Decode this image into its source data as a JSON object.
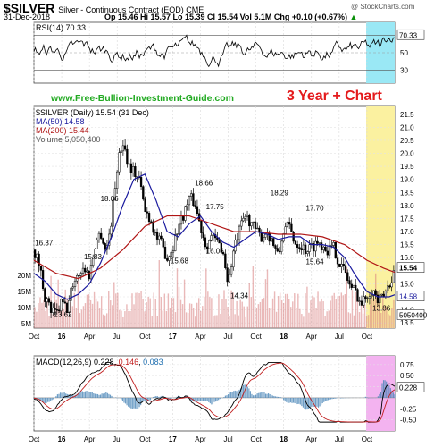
{
  "header": {
    "symbol": "$SILVER",
    "subtitle": "Silver - Continuous Contract (EOD)  CME",
    "date": "31-Dec-2018",
    "quote": "Op 15.46  Hi 15.57  Lo 15.39  Cl 15.54  Vol 5.1M  Chg +0.10 (+0.67%)",
    "quote_arrow": "▲",
    "brand": "@ StockCharts.com"
  },
  "overlay": {
    "site": "www.Free-Bullion-Investment-Guide.com",
    "range_label": "3 Year + Chart"
  },
  "colors": {
    "price": "#000000",
    "ma50": "#1a1a9e",
    "ma200": "#b01515",
    "volume": "#d98080",
    "rsi_highlight": "#9ae8f5",
    "price_highlight": "#fbf1a0",
    "macd_highlight": "#f3b3f0"
  },
  "chart_data": [
    {
      "type": "line",
      "name": "RSI",
      "title": "RSI(14) 70.33",
      "yticks": [
        30,
        50,
        70
      ],
      "ylim": [
        15,
        85
      ],
      "last_value_label": "70.33",
      "levels": [
        30,
        70
      ]
    },
    {
      "type": "candlestick",
      "name": "price",
      "title": "$SILVER (Daily) 15.54 (31 Dec)",
      "legend": [
        {
          "label": "MA(50) 14.58",
          "color": "#1a1a9e"
        },
        {
          "label": "MA(200) 15.44",
          "color": "#b01515"
        },
        {
          "label": "Volume 5,050,400",
          "color": "#999999"
        }
      ],
      "ylim": [
        13.3,
        21.8
      ],
      "yticks": [
        13.5,
        14.0,
        14.5,
        15.0,
        15.5,
        16.0,
        16.5,
        17.0,
        17.5,
        18.0,
        18.5,
        19.0,
        19.5,
        20.0,
        20.5,
        21.0,
        21.5
      ],
      "ytick_labels": [
        "13.5",
        "14.0",
        "14.5",
        "15.0",
        "",
        "16.0",
        "16.5",
        "17.0",
        "17.5",
        "18.0",
        "18.5",
        "19.0",
        "19.5",
        "20.0",
        "20.5",
        "21.0",
        "21.5"
      ],
      "xlim": [
        2015.75,
        2019.0
      ],
      "xticks": [
        2015.75,
        2016.0,
        2016.25,
        2016.5,
        2016.75,
        2017.0,
        2017.25,
        2017.5,
        2017.75,
        2018.0,
        2018.25,
        2018.5,
        2018.75
      ],
      "xtick_labels": [
        "Oct",
        "16",
        "Apr",
        "Jul",
        "Oct",
        "17",
        "Apr",
        "Jul",
        "Oct",
        "18",
        "Apr",
        "Jul",
        "Oct"
      ],
      "volume_ticks": [
        "5M",
        "10M",
        "15M",
        "20M"
      ],
      "volume_last_label": "5050400",
      "last_price_label": "15.54",
      "ma50_last_label": "14.58",
      "close_path": [
        [
          2015.75,
          16.3
        ],
        [
          2015.8,
          15.7
        ],
        [
          2015.85,
          14.5
        ],
        [
          2015.9,
          14.0
        ],
        [
          2015.95,
          13.8
        ],
        [
          2016.0,
          14.3
        ],
        [
          2016.05,
          14.0
        ],
        [
          2016.1,
          15.0
        ],
        [
          2016.15,
          15.4
        ],
        [
          2016.2,
          15.6
        ],
        [
          2016.25,
          15.3
        ],
        [
          2016.3,
          16.5
        ],
        [
          2016.35,
          17.0
        ],
        [
          2016.4,
          16.2
        ],
        [
          2016.45,
          17.5
        ],
        [
          2016.5,
          19.5
        ],
        [
          2016.55,
          20.5
        ],
        [
          2016.6,
          19.6
        ],
        [
          2016.65,
          19.3
        ],
        [
          2016.7,
          19.0
        ],
        [
          2016.75,
          17.8
        ],
        [
          2016.8,
          17.5
        ],
        [
          2016.85,
          16.8
        ],
        [
          2016.9,
          16.5
        ],
        [
          2016.95,
          16.0
        ],
        [
          2017.0,
          16.4
        ],
        [
          2017.05,
          17.2
        ],
        [
          2017.1,
          17.7
        ],
        [
          2017.15,
          18.3
        ],
        [
          2017.2,
          18.1
        ],
        [
          2017.25,
          17.2
        ],
        [
          2017.3,
          16.5
        ],
        [
          2017.35,
          16.8
        ],
        [
          2017.4,
          16.6
        ],
        [
          2017.45,
          16.3
        ],
        [
          2017.5,
          15.0
        ],
        [
          2017.55,
          16.3
        ],
        [
          2017.6,
          17.0
        ],
        [
          2017.65,
          17.6
        ],
        [
          2017.7,
          17.4
        ],
        [
          2017.75,
          17.0
        ],
        [
          2017.8,
          16.8
        ],
        [
          2017.85,
          17.0
        ],
        [
          2017.9,
          16.6
        ],
        [
          2017.95,
          16.0
        ],
        [
          2018.0,
          17.1
        ],
        [
          2018.05,
          17.2
        ],
        [
          2018.1,
          16.6
        ],
        [
          2018.15,
          16.5
        ],
        [
          2018.2,
          16.3
        ],
        [
          2018.25,
          16.4
        ],
        [
          2018.3,
          16.6
        ],
        [
          2018.35,
          16.5
        ],
        [
          2018.4,
          16.3
        ],
        [
          2018.45,
          16.4
        ],
        [
          2018.5,
          15.8
        ],
        [
          2018.55,
          15.5
        ],
        [
          2018.6,
          14.9
        ],
        [
          2018.65,
          14.7
        ],
        [
          2018.7,
          14.2
        ],
        [
          2018.75,
          14.6
        ],
        [
          2018.8,
          14.8
        ],
        [
          2018.85,
          14.3
        ],
        [
          2018.9,
          14.5
        ],
        [
          2018.95,
          15.0
        ],
        [
          2019.0,
          15.54
        ]
      ],
      "ma50_path": [
        [
          2015.75,
          15.4
        ],
        [
          2015.85,
          15.1
        ],
        [
          2015.95,
          14.6
        ],
        [
          2016.05,
          14.4
        ],
        [
          2016.15,
          14.6
        ],
        [
          2016.25,
          15.0
        ],
        [
          2016.35,
          15.8
        ],
        [
          2016.45,
          16.8
        ],
        [
          2016.55,
          18.0
        ],
        [
          2016.65,
          19.0
        ],
        [
          2016.75,
          19.2
        ],
        [
          2016.85,
          18.2
        ],
        [
          2016.95,
          17.0
        ],
        [
          2017.05,
          16.8
        ],
        [
          2017.15,
          17.3
        ],
        [
          2017.25,
          17.6
        ],
        [
          2017.35,
          17.0
        ],
        [
          2017.45,
          16.6
        ],
        [
          2017.55,
          16.4
        ],
        [
          2017.65,
          16.7
        ],
        [
          2017.75,
          17.0
        ],
        [
          2017.85,
          16.9
        ],
        [
          2017.95,
          16.7
        ],
        [
          2018.05,
          16.8
        ],
        [
          2018.15,
          16.8
        ],
        [
          2018.25,
          16.5
        ],
        [
          2018.35,
          16.5
        ],
        [
          2018.45,
          16.4
        ],
        [
          2018.55,
          16.0
        ],
        [
          2018.65,
          15.3
        ],
        [
          2018.75,
          14.7
        ],
        [
          2018.85,
          14.5
        ],
        [
          2018.95,
          14.5
        ],
        [
          2019.0,
          14.58
        ]
      ],
      "ma200_path": [
        [
          2015.75,
          15.9
        ],
        [
          2015.95,
          15.4
        ],
        [
          2016.15,
          15.2
        ],
        [
          2016.35,
          15.6
        ],
        [
          2016.55,
          16.3
        ],
        [
          2016.75,
          17.2
        ],
        [
          2016.95,
          17.6
        ],
        [
          2017.15,
          17.6
        ],
        [
          2017.35,
          17.3
        ],
        [
          2017.55,
          17.0
        ],
        [
          2017.75,
          17.0
        ],
        [
          2017.95,
          16.9
        ],
        [
          2018.15,
          16.9
        ],
        [
          2018.35,
          16.8
        ],
        [
          2018.55,
          16.5
        ],
        [
          2018.75,
          15.9
        ],
        [
          2018.9,
          15.6
        ],
        [
          2019.0,
          15.44
        ]
      ],
      "annotations": [
        {
          "text": "16.37",
          "x": 2015.76,
          "y": 16.37
        },
        {
          "text": "13.62",
          "x": 2015.93,
          "y": 13.62
        },
        {
          "text": "15.83",
          "x": 2016.2,
          "y": 15.83
        },
        {
          "text": "18.06",
          "x": 2016.35,
          "y": 18.06
        },
        {
          "text": "15.68",
          "x": 2016.98,
          "y": 15.68
        },
        {
          "text": "18.66",
          "x": 2017.2,
          "y": 18.66
        },
        {
          "text": "17.75",
          "x": 2017.3,
          "y": 17.75
        },
        {
          "text": "16.06",
          "x": 2017.3,
          "y": 16.06
        },
        {
          "text": "14.34",
          "x": 2017.52,
          "y": 14.34
        },
        {
          "text": "18.29",
          "x": 2017.88,
          "y": 18.29
        },
        {
          "text": "17.70",
          "x": 2018.2,
          "y": 17.7
        },
        {
          "text": "15.64",
          "x": 2018.2,
          "y": 15.64
        },
        {
          "text": "13.86",
          "x": 2018.8,
          "y": 13.86
        }
      ]
    },
    {
      "type": "line",
      "name": "MACD",
      "title": "MACD(12,26,9) 0.228, 0.146, 0.083",
      "title_values": [
        "0.228",
        "0.146",
        "0.083"
      ],
      "ylim": [
        -0.75,
        0.95
      ],
      "yticks": [
        0.75,
        0.5,
        0.25,
        0.0,
        -0.25,
        -0.5
      ],
      "ytick_labels": [
        "0.75",
        "0.50",
        "0.25",
        "",
        "-0.25",
        "-0.50"
      ],
      "last_value_label": "0.228",
      "xtick_labels": [
        "Oct",
        "16",
        "Apr",
        "Jul",
        "Oct",
        "17",
        "Apr",
        "Jul",
        "Oct",
        "18",
        "Apr",
        "Jul",
        "Oct"
      ]
    }
  ]
}
